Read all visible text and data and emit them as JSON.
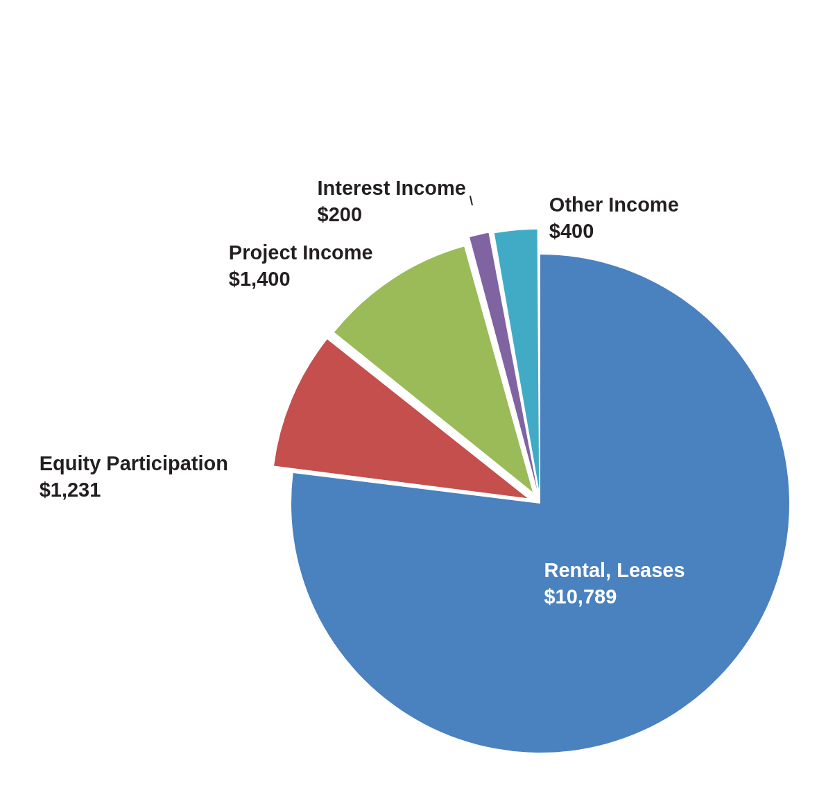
{
  "chart_data": {
    "type": "pie",
    "categories": [
      "Rental, Leases",
      "Equity Participation",
      "Project Income",
      "Interest Income",
      "Other Income"
    ],
    "values": [
      10789,
      1231,
      1400,
      200,
      400
    ],
    "value_labels": [
      "$10,789",
      "$1,231",
      "$1,400",
      "$200",
      "$400"
    ],
    "colors": [
      "#4a81bf",
      "#c44f4c",
      "#9bbb59",
      "#8064a2",
      "#41abc6"
    ],
    "legend": false
  }
}
